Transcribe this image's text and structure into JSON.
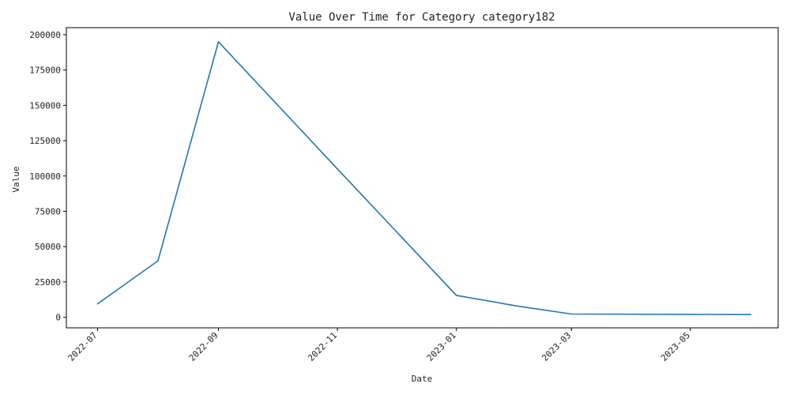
{
  "chart_data": {
    "type": "line",
    "title": "Value Over Time for Category category182",
    "xlabel": "Date",
    "ylabel": "Value",
    "ylim": [
      -7500,
      205000
    ],
    "xlim": [
      "2022-06-15",
      "2023-06-15"
    ],
    "x_ticks": [
      "2022-07",
      "2022-09",
      "2022-11",
      "2023-01",
      "2023-03",
      "2023-05"
    ],
    "y_ticks": [
      0,
      25000,
      50000,
      75000,
      100000,
      125000,
      150000,
      175000,
      200000
    ],
    "grid": false,
    "legend": "none",
    "series": [
      {
        "color": "#1f77b4",
        "points": [
          {
            "x": "2022-07-01",
            "y": 9500
          },
          {
            "x": "2022-08-01",
            "y": 40000
          },
          {
            "x": "2022-09-01",
            "y": 195000
          },
          {
            "x": "2022-11-01",
            "y": 105000
          },
          {
            "x": "2023-01-01",
            "y": 15500
          },
          {
            "x": "2023-02-01",
            "y": 8000
          },
          {
            "x": "2023-03-01",
            "y": 2300
          },
          {
            "x": "2023-06-01",
            "y": 1900
          }
        ]
      }
    ]
  }
}
